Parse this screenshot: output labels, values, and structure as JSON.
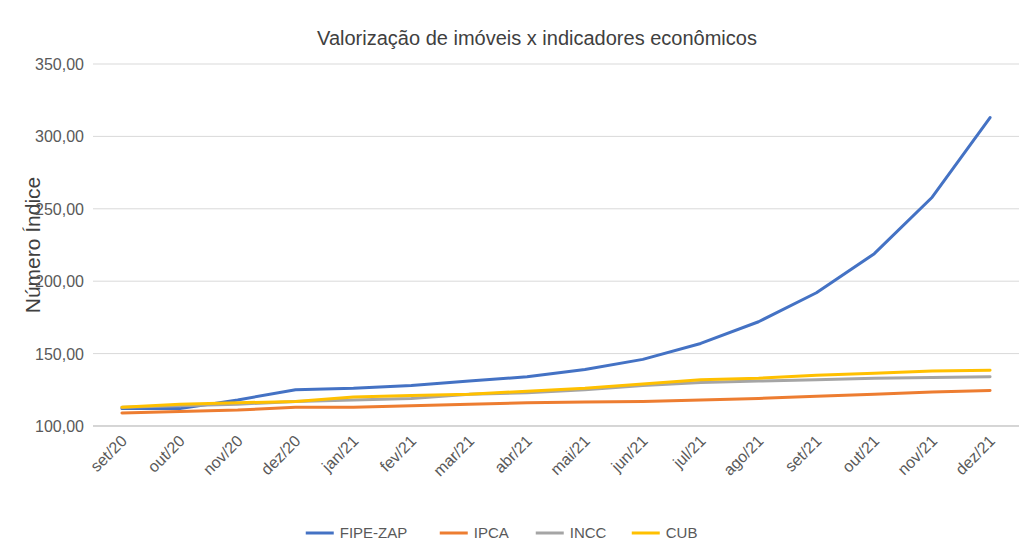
{
  "chart_data": {
    "type": "line",
    "title": "Valorização de imóveis x indicadores econômicos",
    "y_label": "Número Índice",
    "categories": [
      "set/20",
      "out/20",
      "nov/20",
      "dez/20",
      "jan/21",
      "fev/21",
      "mar/21",
      "abr/21",
      "mai/21",
      "jun/21",
      "jul/21",
      "ago/21",
      "set/21",
      "out/21",
      "nov/21",
      "dez/21"
    ],
    "series": [
      {
        "name": "FIPE-ZAP",
        "color": "#4472c4",
        "values": [
          112,
          112,
          118,
          125,
          126,
          128,
          131,
          134,
          139,
          146,
          157,
          172,
          192,
          219,
          258,
          313
        ]
      },
      {
        "name": "IPCA",
        "color": "#ed7d31",
        "values": [
          109,
          110,
          111,
          113,
          113,
          114,
          115,
          116,
          116.5,
          117,
          118,
          119,
          120.5,
          122,
          123.5,
          124.5
        ]
      },
      {
        "name": "INCC",
        "color": "#a5a5a5",
        "values": [
          113,
          114,
          115,
          117,
          118,
          119,
          122,
          123,
          125,
          128,
          130,
          131,
          132,
          133,
          133.5,
          134
        ]
      },
      {
        "name": "CUB",
        "color": "#ffc000",
        "values": [
          113,
          115,
          116,
          117,
          120,
          121,
          122,
          124,
          126,
          129,
          132,
          133,
          135,
          136.5,
          138,
          138.5
        ]
      }
    ],
    "ylim": [
      100,
      350
    ],
    "yticks": [
      {
        "value": 100,
        "label": "100,00"
      },
      {
        "value": 150,
        "label": "150,00"
      },
      {
        "value": 200,
        "label": "200,00"
      },
      {
        "value": 250,
        "label": "250,00"
      },
      {
        "value": 300,
        "label": "300,00"
      },
      {
        "value": 350,
        "label": "350,00"
      }
    ],
    "grid": true,
    "legend": "bottom"
  }
}
